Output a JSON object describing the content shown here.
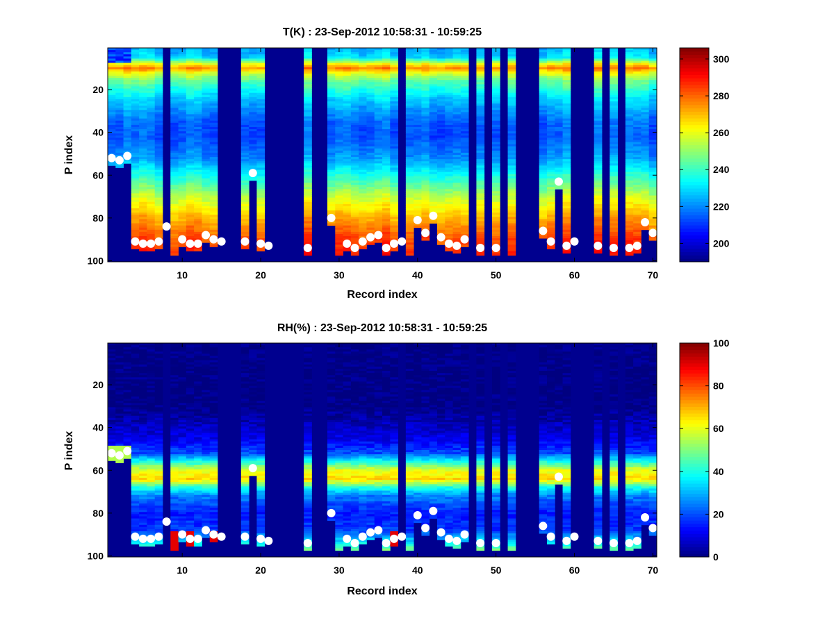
{
  "chart_data": [
    {
      "type": "heatmap",
      "title": "T(K) : 23-Sep-2012 10:58:31 - 10:59:25",
      "xlabel": "Record index",
      "ylabel": "P index",
      "xlim": [
        0.5,
        70.5
      ],
      "ylim": [
        0.5,
        100.5
      ],
      "y_reversed": true,
      "x_ticks": [
        "10",
        "20",
        "30",
        "40",
        "50",
        "60",
        "70"
      ],
      "y_ticks": [
        "20",
        "40",
        "60",
        "80",
        "100"
      ],
      "colorbar": {
        "min": 190,
        "max": 306,
        "ticks": [
          "200",
          "220",
          "240",
          "260",
          "280",
          "300"
        ],
        "colormap": "jet"
      },
      "records": 70,
      "levels": 100,
      "missing_records": [
        8,
        15,
        16,
        17,
        21,
        22,
        23,
        24,
        25,
        27,
        28,
        38,
        47,
        49,
        51,
        53,
        54,
        55,
        60,
        61,
        62,
        64,
        66
      ],
      "profile": "T ≈ 225K at P index 1–5, ≈ 275K warm layer near P index 9–11, ≈ 215K minimum near P index 40, increasing to ≈ 285K at the surface level",
      "surface_markers": [
        {
          "record": 1,
          "p_index": 52
        },
        {
          "record": 2,
          "p_index": 53
        },
        {
          "record": 3,
          "p_index": 51
        },
        {
          "record": 4,
          "p_index": 91
        },
        {
          "record": 5,
          "p_index": 92
        },
        {
          "record": 6,
          "p_index": 92
        },
        {
          "record": 7,
          "p_index": 91
        },
        {
          "record": 8,
          "p_index": 84
        },
        {
          "record": 10,
          "p_index": 90
        },
        {
          "record": 11,
          "p_index": 92
        },
        {
          "record": 12,
          "p_index": 92
        },
        {
          "record": 13,
          "p_index": 88
        },
        {
          "record": 14,
          "p_index": 90
        },
        {
          "record": 15,
          "p_index": 91
        },
        {
          "record": 18,
          "p_index": 91
        },
        {
          "record": 19,
          "p_index": 59
        },
        {
          "record": 20,
          "p_index": 92
        },
        {
          "record": 21,
          "p_index": 93
        },
        {
          "record": 26,
          "p_index": 94
        },
        {
          "record": 29,
          "p_index": 80
        },
        {
          "record": 31,
          "p_index": 92
        },
        {
          "record": 32,
          "p_index": 94
        },
        {
          "record": 33,
          "p_index": 91
        },
        {
          "record": 34,
          "p_index": 89
        },
        {
          "record": 35,
          "p_index": 88
        },
        {
          "record": 36,
          "p_index": 94
        },
        {
          "record": 37,
          "p_index": 92
        },
        {
          "record": 38,
          "p_index": 91
        },
        {
          "record": 40,
          "p_index": 81
        },
        {
          "record": 41,
          "p_index": 87
        },
        {
          "record": 42,
          "p_index": 79
        },
        {
          "record": 43,
          "p_index": 89
        },
        {
          "record": 44,
          "p_index": 92
        },
        {
          "record": 45,
          "p_index": 93
        },
        {
          "record": 46,
          "p_index": 90
        },
        {
          "record": 48,
          "p_index": 94
        },
        {
          "record": 50,
          "p_index": 94
        },
        {
          "record": 56,
          "p_index": 86
        },
        {
          "record": 57,
          "p_index": 91
        },
        {
          "record": 58,
          "p_index": 63
        },
        {
          "record": 59,
          "p_index": 93
        },
        {
          "record": 60,
          "p_index": 91
        },
        {
          "record": 63,
          "p_index": 93
        },
        {
          "record": 65,
          "p_index": 94
        },
        {
          "record": 67,
          "p_index": 94
        },
        {
          "record": 68,
          "p_index": 93
        },
        {
          "record": 69,
          "p_index": 82
        },
        {
          "record": 70,
          "p_index": 87
        }
      ]
    },
    {
      "type": "heatmap",
      "title": "RH(%) : 23-Sep-2012 10:58:31 - 10:59:25",
      "xlabel": "Record index",
      "ylabel": "P index",
      "xlim": [
        0.5,
        70.5
      ],
      "ylim": [
        0.5,
        100.5
      ],
      "y_reversed": true,
      "x_ticks": [
        "10",
        "20",
        "30",
        "40",
        "50",
        "60",
        "70"
      ],
      "y_ticks": [
        "20",
        "40",
        "60",
        "80",
        "100"
      ],
      "colorbar": {
        "min": 0,
        "max": 100,
        "ticks": [
          "0",
          "20",
          "40",
          "60",
          "80",
          "100"
        ],
        "colormap": "jet"
      },
      "records": 70,
      "levels": 100,
      "missing_records": [
        8,
        15,
        16,
        17,
        21,
        22,
        23,
        24,
        25,
        27,
        28,
        38,
        47,
        49,
        51,
        53,
        54,
        55,
        60,
        61,
        62,
        64,
        66
      ],
      "profile": "RH ≈ 0% at P index 1–35, increasing to ≈ 65% in a moist layer at P index 58–68, ≈ 10–20% at P index 75–90, rising near the surface",
      "surface_markers": "same as T(K) panel"
    }
  ]
}
